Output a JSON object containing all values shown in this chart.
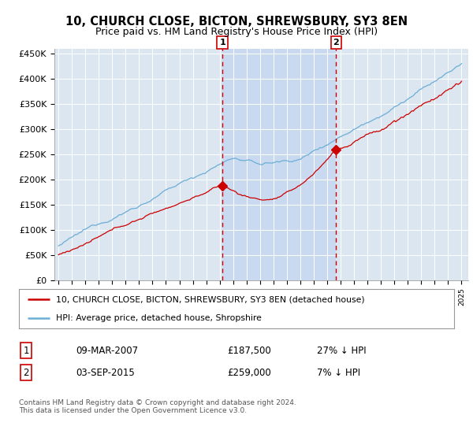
{
  "title": "10, CHURCH CLOSE, BICTON, SHREWSBURY, SY3 8EN",
  "subtitle": "Price paid vs. HM Land Registry's House Price Index (HPI)",
  "hpi_color": "#6baed6",
  "price_color": "#cc0000",
  "background_color": "#ffffff",
  "plot_bg_color": "#dce6f1",
  "shade_color": "#c6d9f0",
  "grid_color": "#ffffff",
  "ylim": [
    0,
    460000
  ],
  "yticks": [
    0,
    50000,
    100000,
    150000,
    200000,
    250000,
    300000,
    350000,
    400000,
    450000
  ],
  "ytick_labels": [
    "£0",
    "£50K",
    "£100K",
    "£150K",
    "£200K",
    "£250K",
    "£300K",
    "£350K",
    "£400K",
    "£450K"
  ],
  "sale1_year": 2007.2,
  "sale1_price": 187500,
  "sale2_year": 2015.67,
  "sale2_price": 259000,
  "legend_label1": "10, CHURCH CLOSE, BICTON, SHREWSBURY, SY3 8EN (detached house)",
  "legend_label2": "HPI: Average price, detached house, Shropshire",
  "table_row1": [
    "1",
    "09-MAR-2007",
    "£187,500",
    "27% ↓ HPI"
  ],
  "table_row2": [
    "2",
    "03-SEP-2015",
    "£259,000",
    "7% ↓ HPI"
  ],
  "footer": "Contains HM Land Registry data © Crown copyright and database right 2024.\nThis data is licensed under the Open Government Licence v3.0.",
  "x_start_year": 1995,
  "x_end_year": 2025
}
